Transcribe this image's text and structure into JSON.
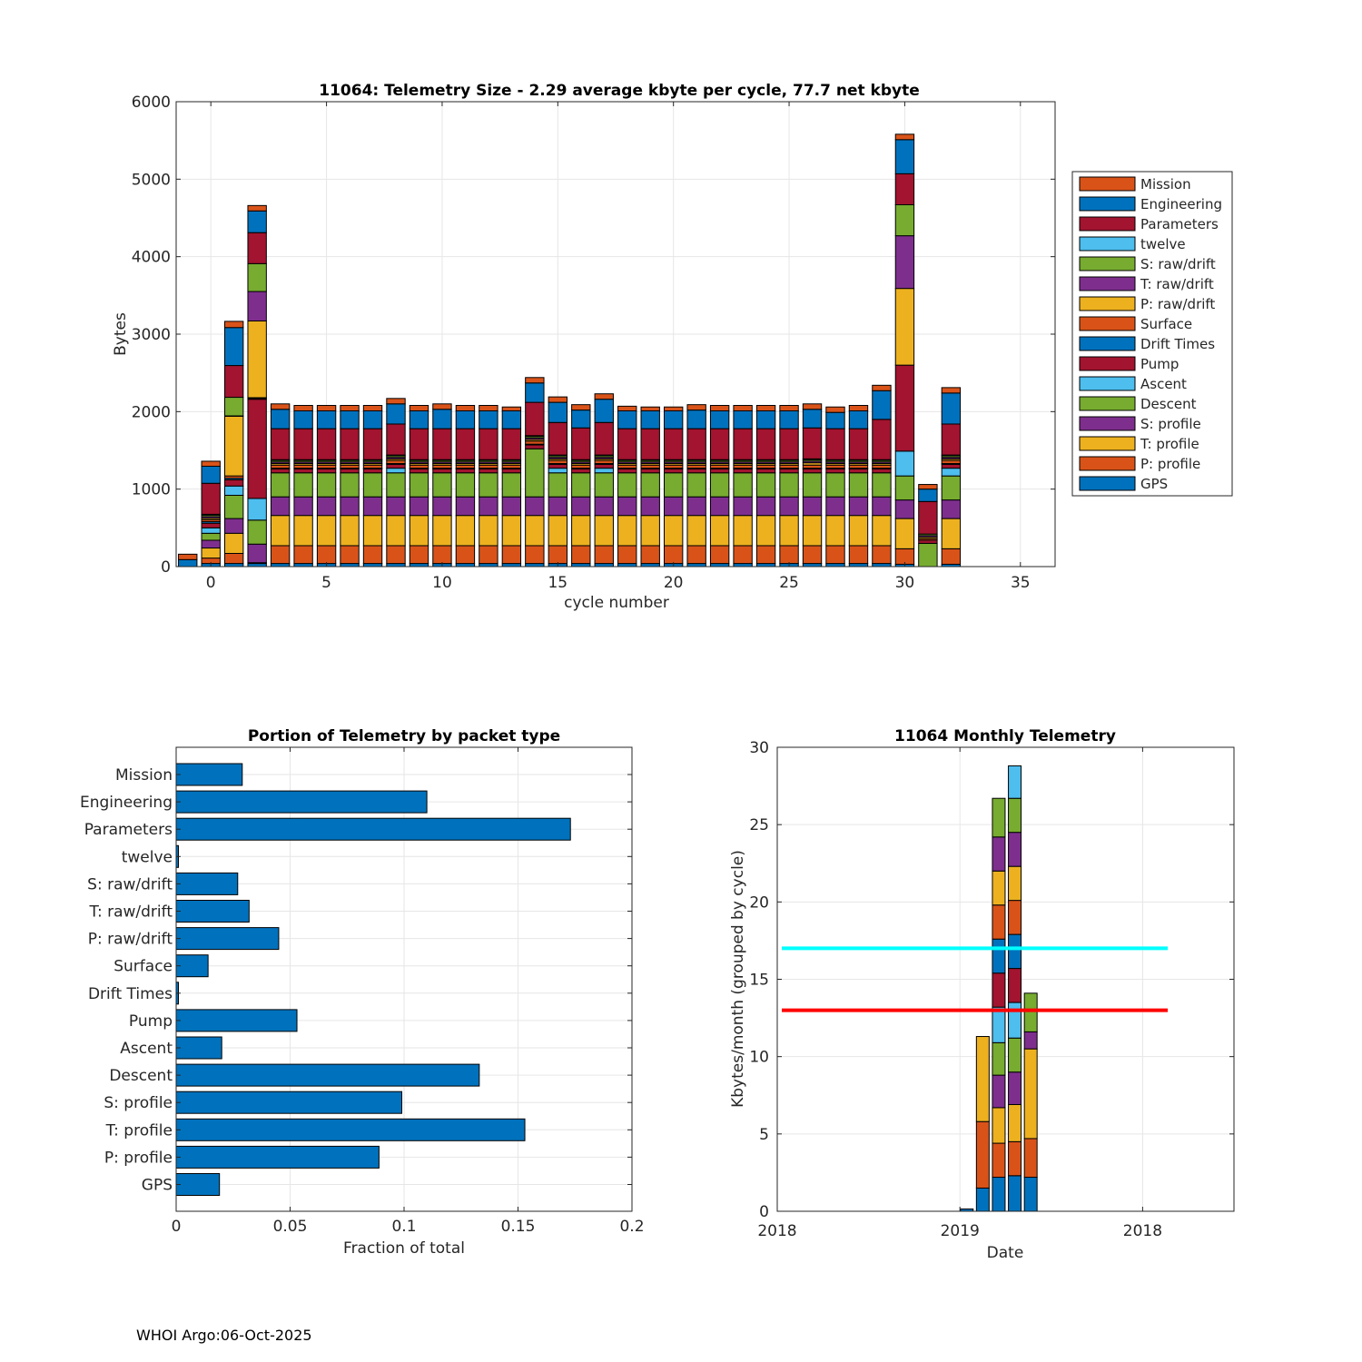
{
  "footer": "WHOI Argo:06-Oct-2025",
  "colors": {
    "Mission": "#D95319",
    "Engineering": "#0072BD",
    "Parameters": "#A2142F",
    "twelve": "#4DBEEE",
    "S: raw/drift": "#77AC30",
    "T: raw/drift": "#7E2F8E",
    "P: raw/drift": "#EDB120",
    "Surface": "#D95319",
    "Drift Times": "#0072BD",
    "Pump": "#A2142F",
    "Ascent": "#4DBEEE",
    "Descent": "#77AC30",
    "S: profile": "#7E2F8E",
    "T: profile": "#EDB120",
    "P: profile": "#D95319",
    "GPS": "#0072BD",
    "bar": "#0072BD",
    "cyan_line": "#00FFFF",
    "red_line": "#FF0000"
  },
  "chart_data": [
    {
      "id": "stacked",
      "type": "bar",
      "title": "11064: Telemetry Size - 2.29 average kbyte per cycle,   77.7 net kbyte",
      "xlabel": "cycle number",
      "ylabel": "Bytes",
      "xlim": [
        -1.5,
        36.5
      ],
      "ylim": [
        0,
        6000
      ],
      "xticks": [
        0,
        5,
        10,
        15,
        20,
        25,
        30,
        35
      ],
      "yticks": [
        0,
        1000,
        2000,
        3000,
        4000,
        5000,
        6000
      ],
      "grid": true,
      "legend": "right",
      "stack_order": [
        "GPS",
        "P: profile",
        "T: profile",
        "S: profile",
        "Descent",
        "Ascent",
        "Pump",
        "Drift Times",
        "Surface",
        "P: raw/drift",
        "T: raw/drift",
        "S: raw/drift",
        "twelve",
        "Parameters",
        "Engineering",
        "Mission"
      ],
      "legend_order": [
        "Mission",
        "Engineering",
        "Parameters",
        "twelve",
        "S: raw/drift",
        "T: raw/drift",
        "P: raw/drift",
        "Surface",
        "Drift Times",
        "Pump",
        "Ascent",
        "Descent",
        "S: profile",
        "T: profile",
        "P: profile",
        "GPS"
      ],
      "cycles": [
        {
          "x": -1,
          "v": [
            0,
            0,
            0,
            0,
            0,
            0,
            0,
            0,
            0,
            0,
            0,
            0,
            0,
            0,
            90,
            70
          ]
        },
        {
          "x": 0,
          "v": [
            40,
            70,
            130,
            100,
            90,
            70,
            60,
            20,
            25,
            20,
            20,
            20,
            10,
            400,
            220,
            65
          ]
        },
        {
          "x": 1,
          "v": [
            40,
            130,
            260,
            190,
            300,
            120,
            80,
            20,
            30,
            770,
            5,
            240,
            0,
            410,
            490,
            80
          ]
        },
        {
          "x": 2,
          "v": [
            40,
            10,
            0,
            240,
            310,
            280,
            1280,
            10,
            10,
            990,
            380,
            360,
            0,
            400,
            280,
            70
          ]
        },
        {
          "x": 3,
          "v": [
            40,
            230,
            390,
            240,
            310,
            0,
            50,
            10,
            40,
            20,
            20,
            20,
            10,
            400,
            250,
            70
          ]
        },
        {
          "x": 4,
          "v": [
            40,
            230,
            390,
            240,
            310,
            0,
            50,
            10,
            40,
            20,
            20,
            20,
            10,
            400,
            230,
            70
          ]
        },
        {
          "x": 5,
          "v": [
            40,
            230,
            390,
            240,
            310,
            0,
            50,
            10,
            40,
            20,
            20,
            20,
            10,
            400,
            230,
            70
          ]
        },
        {
          "x": 6,
          "v": [
            40,
            230,
            390,
            240,
            310,
            0,
            50,
            10,
            40,
            20,
            20,
            20,
            10,
            400,
            230,
            70
          ]
        },
        {
          "x": 7,
          "v": [
            40,
            230,
            390,
            240,
            310,
            0,
            50,
            10,
            40,
            20,
            20,
            20,
            10,
            400,
            230,
            70
          ]
        },
        {
          "x": 8,
          "v": [
            40,
            230,
            390,
            240,
            310,
            60,
            50,
            10,
            40,
            20,
            20,
            20,
            10,
            400,
            260,
            70
          ]
        },
        {
          "x": 9,
          "v": [
            40,
            230,
            390,
            240,
            310,
            0,
            50,
            10,
            40,
            20,
            20,
            20,
            10,
            400,
            230,
            70
          ]
        },
        {
          "x": 10,
          "v": [
            40,
            230,
            390,
            240,
            310,
            0,
            50,
            10,
            40,
            20,
            20,
            20,
            10,
            400,
            250,
            70
          ]
        },
        {
          "x": 11,
          "v": [
            40,
            230,
            390,
            240,
            310,
            0,
            50,
            10,
            40,
            20,
            20,
            20,
            10,
            400,
            230,
            70
          ]
        },
        {
          "x": 12,
          "v": [
            40,
            230,
            390,
            240,
            310,
            0,
            50,
            10,
            40,
            20,
            20,
            20,
            10,
            400,
            230,
            70
          ]
        },
        {
          "x": 13,
          "v": [
            40,
            230,
            390,
            240,
            310,
            0,
            50,
            10,
            40,
            20,
            20,
            20,
            10,
            400,
            230,
            50
          ]
        },
        {
          "x": 14,
          "v": [
            40,
            230,
            390,
            240,
            620,
            0,
            50,
            10,
            40,
            20,
            20,
            20,
            10,
            430,
            250,
            70
          ]
        },
        {
          "x": 15,
          "v": [
            40,
            230,
            390,
            240,
            310,
            60,
            50,
            10,
            40,
            20,
            20,
            20,
            10,
            420,
            260,
            70
          ]
        },
        {
          "x": 16,
          "v": [
            40,
            230,
            390,
            240,
            310,
            0,
            50,
            10,
            40,
            20,
            20,
            20,
            10,
            410,
            230,
            70
          ]
        },
        {
          "x": 17,
          "v": [
            40,
            230,
            390,
            240,
            310,
            60,
            50,
            10,
            40,
            20,
            20,
            20,
            10,
            420,
            300,
            70
          ]
        },
        {
          "x": 18,
          "v": [
            40,
            230,
            390,
            240,
            310,
            0,
            50,
            10,
            40,
            20,
            20,
            20,
            10,
            400,
            230,
            60
          ]
        },
        {
          "x": 19,
          "v": [
            40,
            230,
            390,
            240,
            310,
            0,
            50,
            10,
            40,
            20,
            20,
            20,
            10,
            400,
            230,
            50
          ]
        },
        {
          "x": 20,
          "v": [
            40,
            230,
            390,
            240,
            310,
            0,
            50,
            10,
            40,
            20,
            20,
            20,
            10,
            400,
            230,
            50
          ]
        },
        {
          "x": 21,
          "v": [
            40,
            230,
            390,
            240,
            310,
            0,
            50,
            10,
            40,
            20,
            20,
            20,
            10,
            400,
            240,
            70
          ]
        },
        {
          "x": 22,
          "v": [
            40,
            230,
            390,
            240,
            310,
            0,
            50,
            10,
            40,
            20,
            20,
            20,
            10,
            400,
            230,
            70
          ]
        },
        {
          "x": 23,
          "v": [
            40,
            230,
            390,
            240,
            310,
            0,
            50,
            10,
            40,
            20,
            20,
            20,
            10,
            400,
            230,
            70
          ]
        },
        {
          "x": 24,
          "v": [
            40,
            230,
            390,
            240,
            310,
            0,
            50,
            10,
            40,
            20,
            20,
            20,
            10,
            400,
            230,
            70
          ]
        },
        {
          "x": 25,
          "v": [
            40,
            230,
            390,
            240,
            310,
            0,
            50,
            10,
            40,
            20,
            20,
            20,
            10,
            400,
            230,
            70
          ]
        },
        {
          "x": 26,
          "v": [
            40,
            230,
            390,
            240,
            310,
            0,
            50,
            10,
            40,
            30,
            20,
            20,
            10,
            400,
            240,
            70
          ]
        },
        {
          "x": 27,
          "v": [
            40,
            230,
            390,
            240,
            310,
            0,
            50,
            10,
            40,
            20,
            20,
            20,
            10,
            400,
            210,
            70
          ]
        },
        {
          "x": 28,
          "v": [
            40,
            230,
            390,
            240,
            310,
            0,
            50,
            10,
            40,
            20,
            20,
            20,
            10,
            400,
            230,
            70
          ]
        },
        {
          "x": 29,
          "v": [
            40,
            230,
            390,
            240,
            310,
            0,
            50,
            10,
            40,
            20,
            20,
            20,
            10,
            520,
            370,
            70
          ]
        },
        {
          "x": 30,
          "v": [
            30,
            200,
            390,
            240,
            310,
            320,
            1110,
            0,
            0,
            990,
            680,
            400,
            0,
            400,
            440,
            70
          ]
        },
        {
          "x": 31,
          "v": [
            0,
            0,
            0,
            0,
            300,
            0,
            40,
            0,
            20,
            20,
            20,
            20,
            0,
            420,
            160,
            60
          ]
        },
        {
          "x": 32,
          "v": [
            30,
            200,
            390,
            240,
            310,
            100,
            50,
            10,
            40,
            20,
            20,
            20,
            10,
            400,
            400,
            70
          ]
        }
      ]
    },
    {
      "id": "fraction",
      "type": "bar",
      "orientation": "horizontal",
      "title": "Portion of Telemetry by packet type",
      "xlabel": "Fraction of total",
      "xlim": [
        0,
        0.2
      ],
      "xticks": [
        0,
        0.05,
        0.1,
        0.15,
        0.2
      ],
      "xtick_labels": [
        "0",
        "0.05",
        "0.1",
        "0.15",
        "0.2"
      ],
      "grid": true,
      "categories": [
        "Mission",
        "Engineering",
        "Parameters",
        "twelve",
        "S: raw/drift",
        "T: raw/drift",
        "P: raw/drift",
        "Surface",
        "Drift Times",
        "Pump",
        "Ascent",
        "Descent",
        "S: profile",
        "T: profile",
        "P: profile",
        "GPS"
      ],
      "values": [
        0.029,
        0.11,
        0.173,
        0.001,
        0.027,
        0.032,
        0.045,
        0.014,
        0.001,
        0.053,
        0.02,
        0.133,
        0.099,
        0.153,
        0.089,
        0.019
      ]
    },
    {
      "id": "monthly",
      "type": "bar",
      "title": "11064 Monthly Telemetry",
      "xlabel": "Date",
      "ylabel": "Kbytes/month (grouped by cycle)",
      "ylim": [
        0,
        30
      ],
      "yticks": [
        0,
        5,
        10,
        15,
        20,
        25,
        30
      ],
      "xlim": [
        0,
        1
      ],
      "xticks": [
        0,
        0.4,
        0.8
      ],
      "xtick_labels": [
        "2018",
        "2019",
        "2018"
      ],
      "grid": true,
      "hlines": [
        {
          "y": 17,
          "x0": 0.01,
          "x1": 0.855,
          "color": "#00FFFF"
        },
        {
          "y": 13,
          "x0": 0.01,
          "x1": 0.855,
          "color": "#FF0000"
        }
      ],
      "bars": [
        {
          "x": 0.415,
          "segments": [
            {
              "value": 0.15,
              "color": "#0072BD"
            }
          ]
        },
        {
          "x": 0.45,
          "segments": [
            {
              "value": 1.5,
              "color": "#0072BD"
            },
            {
              "value": 4.3,
              "color": "#D95319"
            },
            {
              "value": 5.5,
              "color": "#EDB120"
            }
          ]
        },
        {
          "x": 0.485,
          "segments": [
            {
              "value": 2.2,
              "color": "#0072BD"
            },
            {
              "value": 2.2,
              "color": "#D95319"
            },
            {
              "value": 2.3,
              "color": "#EDB120"
            },
            {
              "value": 2.1,
              "color": "#7E2F8E"
            },
            {
              "value": 2.1,
              "color": "#77AC30"
            },
            {
              "value": 2.3,
              "color": "#4DBEEE"
            },
            {
              "value": 2.2,
              "color": "#A2142F"
            },
            {
              "value": 2.2,
              "color": "#0072BD"
            },
            {
              "value": 2.2,
              "color": "#D95319"
            },
            {
              "value": 2.2,
              "color": "#EDB120"
            },
            {
              "value": 2.2,
              "color": "#7E2F8E"
            },
            {
              "value": 2.5,
              "color": "#77AC30"
            }
          ]
        },
        {
          "x": 0.52,
          "segments": [
            {
              "value": 2.3,
              "color": "#0072BD"
            },
            {
              "value": 2.2,
              "color": "#D95319"
            },
            {
              "value": 2.4,
              "color": "#EDB120"
            },
            {
              "value": 2.1,
              "color": "#7E2F8E"
            },
            {
              "value": 2.2,
              "color": "#77AC30"
            },
            {
              "value": 2.3,
              "color": "#4DBEEE"
            },
            {
              "value": 2.2,
              "color": "#A2142F"
            },
            {
              "value": 2.2,
              "color": "#0072BD"
            },
            {
              "value": 2.2,
              "color": "#D95319"
            },
            {
              "value": 2.2,
              "color": "#EDB120"
            },
            {
              "value": 2.2,
              "color": "#7E2F8E"
            },
            {
              "value": 2.2,
              "color": "#77AC30"
            },
            {
              "value": 2.1,
              "color": "#4DBEEE"
            }
          ]
        },
        {
          "x": 0.555,
          "segments": [
            {
              "value": 2.2,
              "color": "#0072BD"
            },
            {
              "value": 2.5,
              "color": "#D95319"
            },
            {
              "value": 5.8,
              "color": "#EDB120"
            },
            {
              "value": 1.1,
              "color": "#7E2F8E"
            },
            {
              "value": 2.5,
              "color": "#77AC30"
            }
          ]
        }
      ]
    }
  ]
}
